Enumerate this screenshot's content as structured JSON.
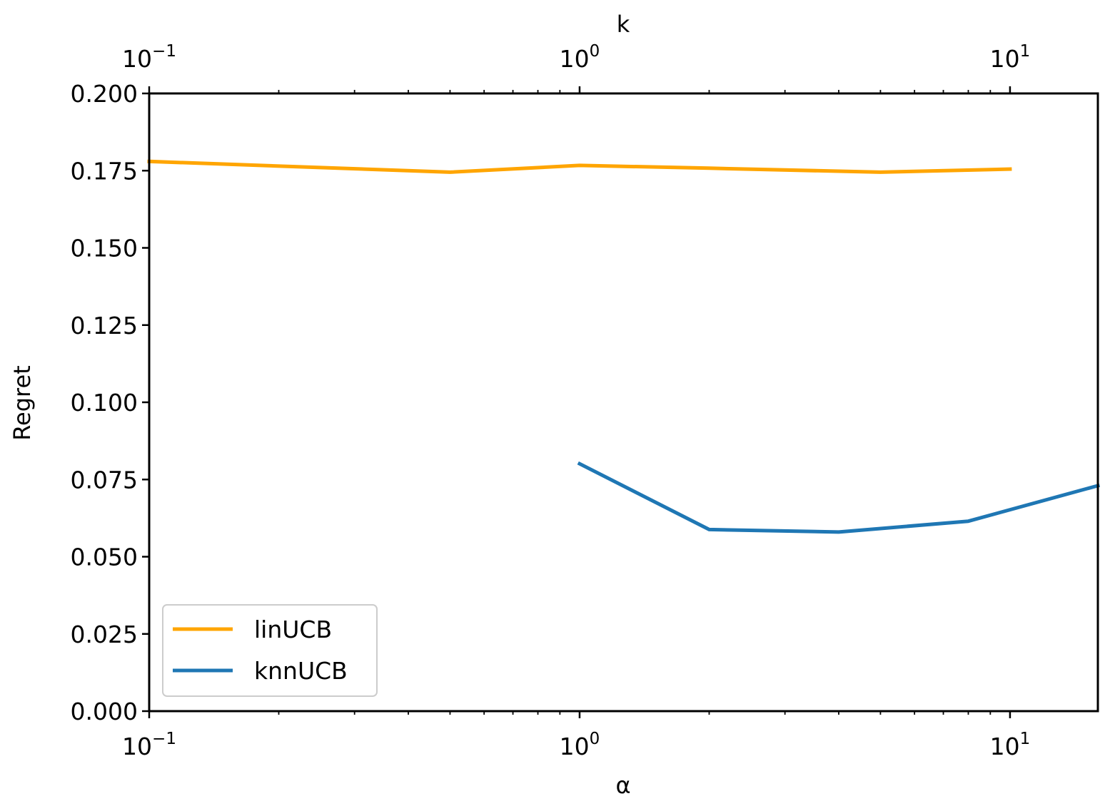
{
  "chart_data": {
    "type": "line",
    "title": "",
    "xlabel_bottom": "α",
    "xlabel_top": "k",
    "ylabel": "Regret",
    "xscale": "log",
    "xlim": [
      0.1,
      16
    ],
    "ylim": [
      0,
      0.2
    ],
    "yticks": [
      "0.000",
      "0.025",
      "0.050",
      "0.075",
      "0.100",
      "0.125",
      "0.150",
      "0.175",
      "0.200"
    ],
    "xticks_bottom": [
      {
        "base": "10",
        "exp": "−1",
        "value": 0.1
      },
      {
        "base": "10",
        "exp": "0",
        "value": 1
      },
      {
        "base": "10",
        "exp": "1",
        "value": 10
      }
    ],
    "xticks_top": [
      {
        "base": "10",
        "exp": "−1",
        "value": 0.1
      },
      {
        "base": "10",
        "exp": "0",
        "value": 1
      },
      {
        "base": "10",
        "exp": "1",
        "value": 10
      }
    ],
    "grid": false,
    "legend_position": "lower-left",
    "series": [
      {
        "name": "linUCB",
        "axis": "bottom",
        "color": "#FFA500",
        "x": [
          0.1,
          0.5,
          1,
          2,
          5,
          10
        ],
        "y": [
          0.178,
          0.1745,
          0.1767,
          0.1758,
          0.1745,
          0.1755
        ]
      },
      {
        "name": "knnUCB",
        "axis": "top",
        "color": "#1F77B4",
        "x": [
          1,
          2,
          4,
          8,
          16
        ],
        "y": [
          0.0801,
          0.0588,
          0.058,
          0.0615,
          0.073
        ]
      }
    ]
  }
}
